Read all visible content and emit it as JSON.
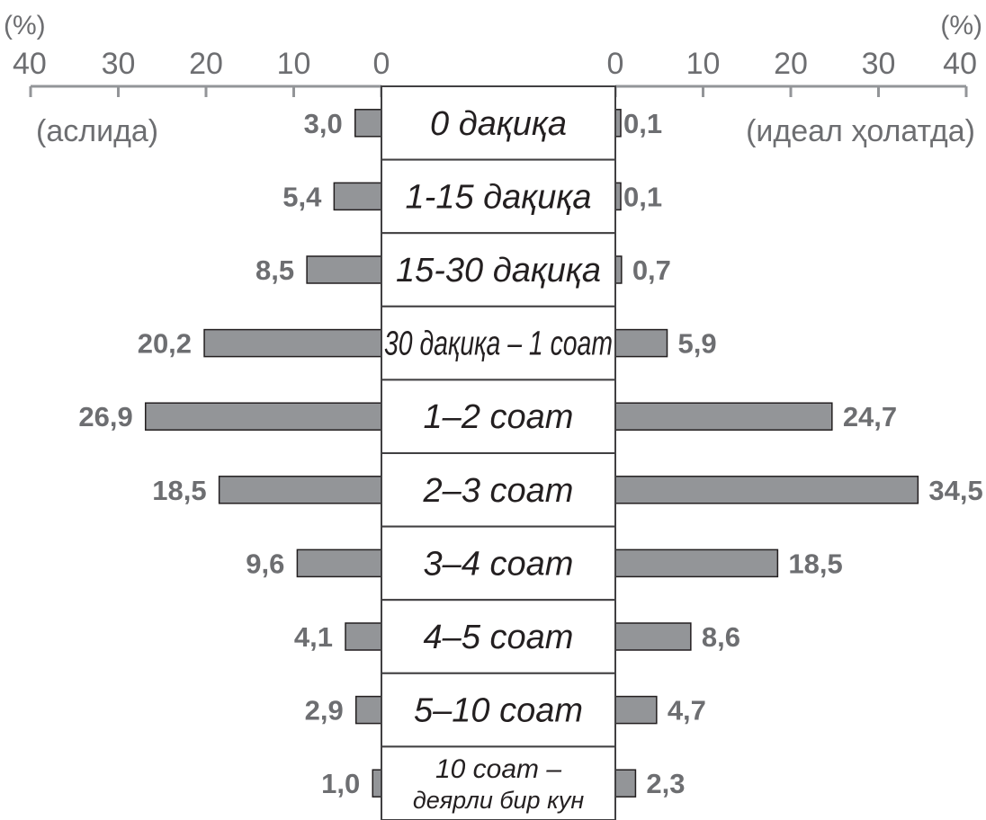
{
  "chart_data": {
    "type": "bar",
    "layout": "butterfly",
    "unit_left": "(%)",
    "unit_right": "(%)",
    "left_label": "(аслида)",
    "right_label": "(идеал ҳолатда)",
    "left_ticks": [
      "40",
      "30",
      "20",
      "10",
      "0"
    ],
    "right_ticks": [
      "0",
      "10",
      "20",
      "30",
      "40"
    ],
    "xlim": [
      0,
      40
    ],
    "categories": [
      "0 дақиқа",
      "1-15 дақиқа",
      "15-30 дақиқа",
      "30 дақиқа – 1 соат",
      "1–2 соат",
      "2–3 соат",
      "3–4 соат",
      "4–5 соат",
      "5–10 соат",
      [
        "10 соат –",
        "деярли бир кун"
      ]
    ],
    "series": [
      {
        "side": "left",
        "values": [
          3.0,
          5.4,
          8.5,
          20.2,
          26.9,
          18.5,
          9.6,
          4.1,
          2.9,
          1.0
        ],
        "labels": [
          "3,0",
          "5,4",
          "8,5",
          "20,2",
          "26,9",
          "18,5",
          "9,6",
          "4,1",
          "2,9",
          "1,0"
        ]
      },
      {
        "side": "right",
        "values": [
          0.1,
          0.1,
          0.7,
          5.9,
          24.7,
          34.5,
          18.5,
          8.6,
          4.7,
          2.3
        ],
        "labels": [
          "0,1",
          "0,1",
          "0,7",
          "5,9",
          "24,7",
          "34,5",
          "18,5",
          "8,6",
          "4,7",
          "2,3"
        ]
      }
    ],
    "colors": {
      "bar": "#939598",
      "text": "#6d6e71",
      "category_text": "#231f20"
    },
    "grid": false
  }
}
